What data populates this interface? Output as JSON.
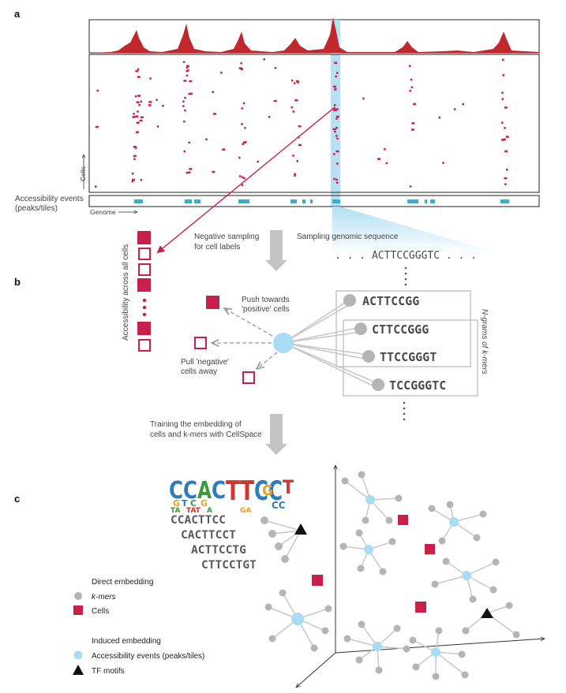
{
  "panels": {
    "a": "a",
    "b": "b",
    "c": "c"
  },
  "panel_a": {
    "cells_axis": "Cells",
    "genome_axis": "Genome",
    "events_label_line1": "Accessibility events",
    "events_label_line2": "(peaks/tiles)"
  },
  "panel_b": {
    "accessibility_label": "Accessibility across all cells",
    "negative_sampling_line1": "Negative sampling",
    "negative_sampling_line2": "for cell labels",
    "sampling_genomic": "Sampling genomic sequence",
    "sequence": ". . . ACTTCCGGGTC . . .",
    "push_line1": "Push towards",
    "push_line2": "'positive' cells",
    "pull_line1": "Pull 'negative'",
    "pull_line2": "cells away",
    "kmers": [
      "ACTTCCGG",
      "CTTCCGGG",
      "TTCCGGGT",
      "TCCGGGTC"
    ],
    "ngrams_label": "N-grams of k-mers",
    "training_line1": "Training the embedding of",
    "training_line2": "cells and k-mers with CellSpace"
  },
  "panel_c": {
    "motif_kmers": [
      "CCACTTCC",
      "CACTTCCT",
      "ACTTCCTG",
      "CTTCCTGT"
    ],
    "legend": {
      "direct_title": "Direct embedding",
      "kmers": "k-mers",
      "cells": "Cells",
      "induced_title": "Induced embedding",
      "events": "Accessibility events (peaks/tiles)",
      "tf_motifs": "TF motifs"
    }
  },
  "colors": {
    "cell_red": "#c8204a",
    "signal_red": "#c0282d",
    "event_blue": "#29b2e0",
    "highlight_blue": "#a9dcf2",
    "peak_node": "#a7dcf2",
    "kmer_grey": "#b5b5b5",
    "arrow_grey": "#c4c4c4"
  }
}
